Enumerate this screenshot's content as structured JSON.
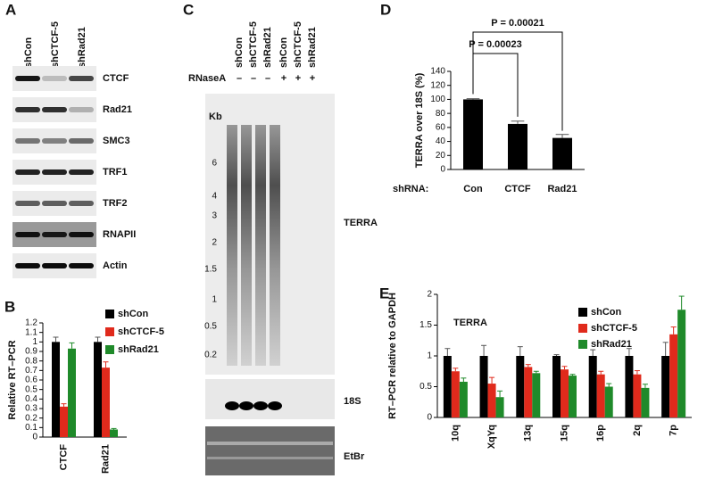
{
  "panel_a": {
    "letter": "A",
    "columns": [
      "shCon",
      "shCTCF-5",
      "shRad21"
    ],
    "rows": [
      "CTCF",
      "Rad21",
      "SMC3",
      "TRF1",
      "TRF2",
      "RNAPII",
      "Actin"
    ]
  },
  "panel_c": {
    "letter": "C",
    "columns": [
      "shCon",
      "shCTCF-5",
      "shRad21",
      "shCon",
      "shCTCF-5",
      "shRad21"
    ],
    "treatment": "RNaseA",
    "signs": [
      "–",
      "–",
      "–",
      "+",
      "+",
      "+"
    ],
    "size_unit": "Kb",
    "markers": [
      "6",
      "4",
      "3",
      "2",
      "1.5",
      "1",
      "0.5",
      "0.2"
    ],
    "blots": [
      "TERRA",
      "18S",
      "EtBr"
    ]
  },
  "chart_data": [
    {
      "type": "bar",
      "letter": "B",
      "ylabel": "Relative RT–PCR",
      "categories": [
        "CTCF",
        "Rad21"
      ],
      "series": [
        {
          "name": "shCon",
          "color": "#000000",
          "values": [
            1,
            1
          ],
          "errors": [
            0.05,
            0.05
          ]
        },
        {
          "name": "shCTCF-5",
          "color": "#e02a1c",
          "values": [
            0.32,
            0.73
          ],
          "errors": [
            0.03,
            0.06
          ]
        },
        {
          "name": "shRad21",
          "color": "#1f8a2a",
          "values": [
            0.93,
            0.08
          ],
          "errors": [
            0.06,
            0.01
          ]
        }
      ],
      "ylim": [
        0,
        1.2
      ],
      "yticks": [
        0,
        0.1,
        0.2,
        0.3,
        0.4,
        0.5,
        0.6,
        0.7,
        0.8,
        0.9,
        1,
        1.1,
        1.2
      ]
    },
    {
      "type": "bar",
      "letter": "D",
      "ylabel": "TERRA over 18S (%)",
      "xlabel": "shRNA:",
      "categories": [
        "Con",
        "CTCF",
        "Rad21"
      ],
      "series": [
        {
          "color": "#000000",
          "values": [
            100,
            65,
            45
          ],
          "errors": [
            1,
            4,
            5
          ]
        }
      ],
      "ylim": [
        0,
        140
      ],
      "yticks": [
        0,
        20,
        40,
        60,
        80,
        100,
        120,
        140
      ],
      "annotations": [
        "P = 0.00023",
        "P = 0.00021"
      ]
    },
    {
      "type": "bar",
      "letter": "E",
      "title": "TERRA",
      "ylabel": "RT–PCR relative to GAPDH",
      "categories": [
        "10q",
        "XqYq",
        "13q",
        "15q",
        "16p",
        "2q",
        "7p"
      ],
      "series": [
        {
          "name": "shCon",
          "color": "#000000",
          "values": [
            1,
            1,
            1,
            1,
            1,
            1,
            1
          ],
          "errors": [
            0.12,
            0.17,
            0.15,
            0.02,
            0.1,
            0.12,
            0.22
          ]
        },
        {
          "name": "shCTCF-5",
          "color": "#e02a1c",
          "values": [
            0.75,
            0.55,
            0.82,
            0.78,
            0.7,
            0.7,
            1.35
          ],
          "errors": [
            0.05,
            0.1,
            0.04,
            0.05,
            0.05,
            0.06,
            0.12
          ]
        },
        {
          "name": "shRad21",
          "color": "#1f8a2a",
          "values": [
            0.58,
            0.33,
            0.72,
            0.68,
            0.5,
            0.48,
            1.75
          ],
          "errors": [
            0.06,
            0.1,
            0.03,
            0.02,
            0.05,
            0.06,
            0.22
          ]
        }
      ],
      "ylim": [
        0,
        2
      ],
      "yticks": [
        0,
        0.5,
        1,
        1.5,
        2
      ]
    }
  ]
}
